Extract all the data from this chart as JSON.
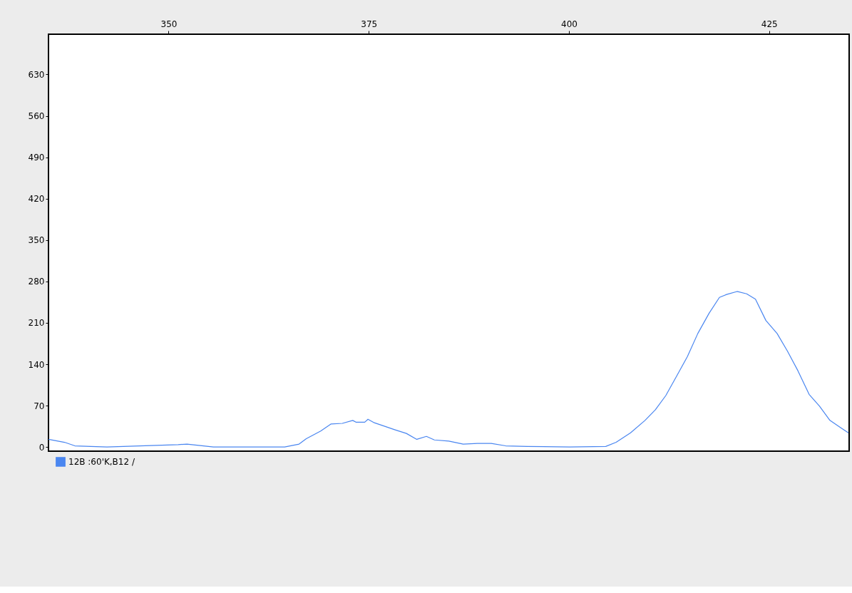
{
  "chart_data": {
    "type": "line",
    "xlim": [
      335,
      435
    ],
    "xticks": [
      350,
      375,
      400,
      425
    ],
    "ylim": [
      -7,
      698
    ],
    "yticks": [
      0,
      70,
      140,
      210,
      280,
      350,
      420,
      490,
      560,
      630
    ],
    "grid": false,
    "legend": "bottom left",
    "marker": "none",
    "line_style": "solid",
    "series": [
      {
        "name": "12B :60'K,B12 /",
        "color": "#4a86f0",
        "x": [
          335,
          337,
          338.3,
          342.3,
          351.2,
          352.3,
          355.6,
          364.5,
          366.3,
          367.2,
          369,
          370.3,
          371.7,
          373,
          373.4,
          374.5,
          374.9,
          375.7,
          377,
          378.3,
          379.7,
          381,
          382.2,
          383.2,
          385,
          386.8,
          388.6,
          390.3,
          392.1,
          394.8,
          400.1,
          404.6,
          405.9,
          407.7,
          409.5,
          410.8,
          412.1,
          413.5,
          414.8,
          416.1,
          417.5,
          418.8,
          419.7,
          421,
          422.2,
          423.3,
          424.6,
          426,
          427.3,
          428.6,
          430,
          431.3,
          432.6,
          433.9,
          434.9
        ],
        "values": [
          13,
          8,
          2,
          0,
          4,
          5,
          0,
          0,
          5,
          14,
          27,
          39,
          40,
          45,
          42,
          42,
          47,
          41,
          35,
          29,
          23,
          13,
          18,
          12,
          10,
          5,
          6,
          6,
          2,
          1,
          0,
          1,
          8,
          24,
          45,
          63,
          87,
          121,
          153,
          192,
          226,
          253,
          258,
          263,
          259,
          250,
          214,
          192,
          162,
          129,
          89,
          69,
          45,
          33,
          24
        ]
      }
    ]
  }
}
